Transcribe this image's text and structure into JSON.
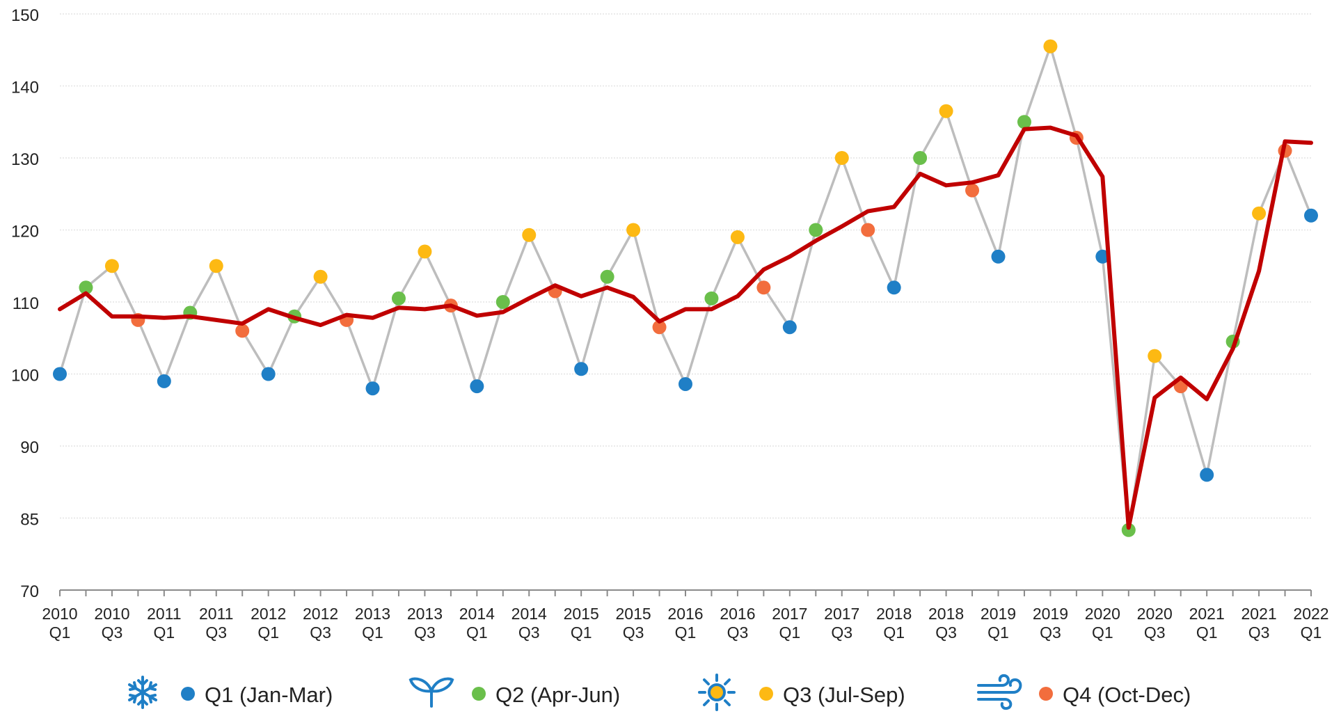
{
  "chart_data": {
    "type": "line",
    "title": "",
    "xlabel": "",
    "ylabel": "",
    "y_tick_labels": [
      "70",
      "85",
      "90",
      "100",
      "110",
      "120",
      "130",
      "140",
      "150"
    ],
    "x_tick_labels": [
      [
        "2010",
        "Q1"
      ],
      [
        "2010",
        "Q3"
      ],
      [
        "2011",
        "Q1"
      ],
      [
        "2011",
        "Q3"
      ],
      [
        "2012",
        "Q1"
      ],
      [
        "2012",
        "Q3"
      ],
      [
        "2013",
        "Q1"
      ],
      [
        "2013",
        "Q3"
      ],
      [
        "2014",
        "Q1"
      ],
      [
        "2014",
        "Q3"
      ],
      [
        "2015",
        "Q1"
      ],
      [
        "2015",
        "Q3"
      ],
      [
        "2016",
        "Q1"
      ],
      [
        "2016",
        "Q3"
      ],
      [
        "2017",
        "Q1"
      ],
      [
        "2017",
        "Q3"
      ],
      [
        "2018",
        "Q1"
      ],
      [
        "2018",
        "Q3"
      ],
      [
        "2019",
        "Q1"
      ],
      [
        "2019",
        "Q3"
      ],
      [
        "2020",
        "Q1"
      ],
      [
        "2020",
        "Q3"
      ],
      [
        "2021",
        "Q1"
      ],
      [
        "2021",
        "Q3"
      ],
      [
        "2022",
        "Q1"
      ]
    ],
    "grid": true,
    "legend_position": "bottom",
    "quarter_series": {
      "name": "",
      "color": "#bdbdbd",
      "values": [
        100,
        112,
        115,
        107.5,
        99,
        108.5,
        115,
        106,
        100,
        108,
        113.5,
        107.5,
        98,
        110.5,
        117,
        109.5,
        98.3,
        110,
        119.3,
        111.5,
        100.7,
        113.5,
        120,
        106.5,
        98.6,
        110.5,
        119,
        112,
        106.5,
        120,
        130,
        120,
        112,
        130,
        136.5,
        125.5,
        116.3,
        135,
        145.5,
        132.8,
        116.3,
        82.5,
        102.5,
        98.3,
        88,
        104.5,
        122.3,
        131,
        122
      ]
    },
    "trend_series": {
      "name": "",
      "color": "#c00000",
      "values": [
        109,
        111.2,
        108,
        108,
        107.8,
        108,
        107.5,
        107,
        109,
        107.8,
        106.8,
        108.2,
        107.8,
        109.2,
        109,
        109.5,
        108.1,
        108.6,
        110.5,
        112.3,
        110.8,
        112,
        110.7,
        107.3,
        109,
        109,
        110.8,
        114.5,
        116.3,
        118.5,
        120.5,
        122.6,
        123.2,
        127.8,
        126.2,
        126.6,
        127.6,
        134,
        134.2,
        133.1,
        127.4,
        83,
        96.7,
        99.5,
        96.5,
        103.5,
        114.3,
        132.3,
        132.1
      ]
    },
    "quarter_colors": {
      "Q1": "#1f7fc6",
      "Q2": "#6abf4b",
      "Q3": "#fdb913",
      "Q4": "#f26d3d"
    },
    "legend": [
      {
        "icon": "snowflake-icon",
        "label": "Q1 (Jan-Mar)",
        "color": "#1f7fc6"
      },
      {
        "icon": "sprout-icon",
        "label": "Q2 (Apr-Jun)",
        "color": "#6abf4b"
      },
      {
        "icon": "sun-icon",
        "label": "Q3 (Jul-Sep)",
        "color": "#fdb913"
      },
      {
        "icon": "wind-icon",
        "label": "Q4 (Oct-Dec)",
        "color": "#f26d3d"
      }
    ]
  }
}
